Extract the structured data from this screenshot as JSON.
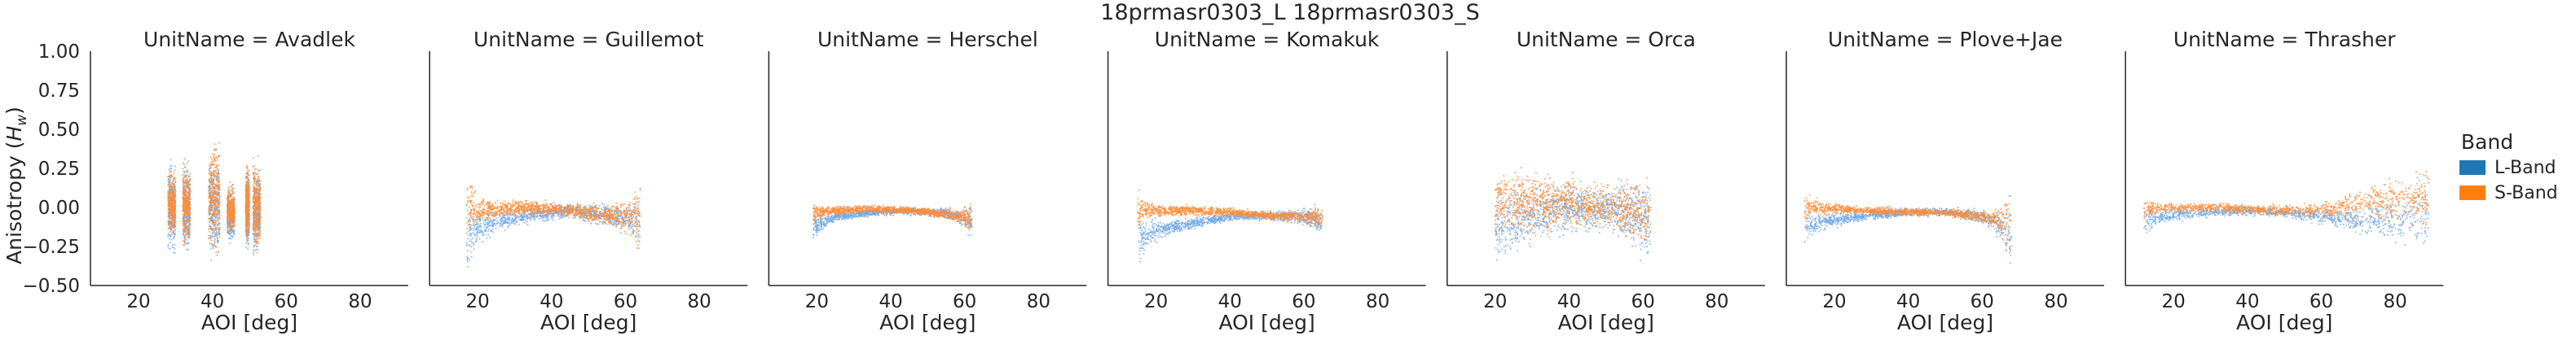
{
  "chart_data": {
    "type": "scatter",
    "suptitle": "18prmasr0303_L 18prmasr0303_S",
    "xlabel": "AOI [deg]",
    "ylabel": "Anisotropy ($H_w$)",
    "ylabel_text": "Anisotropy (",
    "ylabel_math": "H",
    "ylabel_sub": "w",
    "ylabel_close": ")",
    "xlim": [
      7,
      93
    ],
    "ylim": [
      -0.5,
      1.0
    ],
    "xticks": [
      20,
      40,
      60,
      80
    ],
    "yticks": [
      -0.5,
      -0.25,
      0.0,
      0.25,
      0.5,
      0.75,
      1.0
    ],
    "ytick_labels": [
      "−0.50",
      "−0.25",
      "0.00",
      "0.25",
      "0.50",
      "0.75",
      "1.00"
    ],
    "grid": false,
    "legend": {
      "title": "Band",
      "placement": "right",
      "entries": [
        {
          "label": "L-Band",
          "color": "#1f77b4"
        },
        {
          "label": "S-Band",
          "color": "#ff7f0e"
        }
      ]
    },
    "point_colors": {
      "L-Band": "#73a9e6",
      "S-Band": "#ff8c38"
    },
    "panels": [
      {
        "title": "UnitName = Avadlek",
        "strips": [
          {
            "x": [
              28,
              30
            ],
            "L": {
              "center": 0.0,
              "spread": 0.3
            },
            "S": {
              "center": 0.02,
              "spread": 0.22
            }
          },
          {
            "x": [
              32,
              34
            ],
            "L": {
              "center": 0.0,
              "spread": 0.3
            },
            "S": {
              "center": 0.02,
              "spread": 0.26
            }
          },
          {
            "x": [
              39,
              42
            ],
            "L": {
              "center": 0.0,
              "spread": 0.34
            },
            "S": {
              "center": 0.08,
              "spread": 0.38
            }
          },
          {
            "x": [
              44,
              46
            ],
            "L": {
              "center": -0.05,
              "spread": 0.18
            },
            "S": {
              "center": -0.02,
              "spread": 0.16
            }
          },
          {
            "x": [
              49,
              50
            ],
            "L": {
              "center": 0.0,
              "spread": 0.26
            },
            "S": {
              "center": 0.02,
              "spread": 0.26
            }
          },
          {
            "x": [
              51,
              53
            ],
            "L": {
              "center": -0.02,
              "spread": 0.3
            },
            "S": {
              "center": 0.0,
              "spread": 0.3
            }
          }
        ]
      },
      {
        "title": "UnitName = Guillemot",
        "range": [
          17,
          64
        ],
        "L": {
          "x": [
            17,
            25,
            35,
            45,
            55,
            60,
            64
          ],
          "y": [
            -0.17,
            -0.09,
            -0.04,
            -0.02,
            -0.05,
            -0.08,
            -0.1
          ]
        },
        "S": {
          "x": [
            17,
            25,
            35,
            45,
            55,
            60,
            64
          ],
          "y": [
            -0.03,
            -0.01,
            0.0,
            -0.02,
            -0.05,
            -0.05,
            -0.06
          ]
        },
        "spread": {
          "x": [
            17,
            20,
            25,
            45,
            58,
            62,
            64
          ],
          "L": [
            0.3,
            0.12,
            0.08,
            0.06,
            0.1,
            0.16,
            0.3
          ],
          "S": [
            0.32,
            0.12,
            0.07,
            0.05,
            0.1,
            0.18,
            0.35
          ]
        }
      },
      {
        "title": "UnitName = Herschel",
        "range": [
          19,
          62
        ],
        "L": {
          "x": [
            19,
            25,
            35,
            45,
            55,
            62
          ],
          "y": [
            -0.13,
            -0.06,
            -0.03,
            -0.02,
            -0.04,
            -0.09
          ]
        },
        "S": {
          "x": [
            19,
            25,
            35,
            45,
            55,
            62
          ],
          "y": [
            -0.03,
            -0.02,
            -0.01,
            -0.02,
            -0.04,
            -0.07
          ]
        },
        "spread": {
          "x": [
            19,
            22,
            30,
            50,
            58,
            62
          ],
          "L": [
            0.12,
            0.05,
            0.03,
            0.03,
            0.05,
            0.14
          ],
          "S": [
            0.1,
            0.04,
            0.03,
            0.03,
            0.05,
            0.12
          ]
        }
      },
      {
        "title": "UnitName = Komakuk",
        "range": [
          15,
          65
        ],
        "L": {
          "x": [
            15,
            20,
            30,
            40,
            50,
            60,
            65
          ],
          "y": [
            -0.2,
            -0.15,
            -0.1,
            -0.06,
            -0.05,
            -0.06,
            -0.09
          ]
        },
        "S": {
          "x": [
            15,
            20,
            30,
            40,
            50,
            60,
            65
          ],
          "y": [
            -0.02,
            -0.02,
            -0.02,
            -0.03,
            -0.05,
            -0.06,
            -0.07
          ]
        },
        "spread": {
          "x": [
            15,
            18,
            25,
            45,
            60,
            65
          ],
          "L": [
            0.22,
            0.1,
            0.05,
            0.03,
            0.06,
            0.12
          ],
          "S": [
            0.18,
            0.06,
            0.04,
            0.03,
            0.05,
            0.1
          ]
        }
      },
      {
        "title": "UnitName = Orca",
        "range": [
          20,
          62
        ],
        "L": {
          "x": [
            20,
            30,
            40,
            50,
            60,
            62
          ],
          "y": [
            -0.12,
            -0.05,
            0.0,
            0.0,
            -0.05,
            -0.1
          ]
        },
        "S": {
          "x": [
            20,
            30,
            40,
            50,
            60,
            62
          ],
          "y": [
            0.02,
            0.03,
            0.03,
            0.0,
            -0.03,
            -0.05
          ]
        },
        "spread": {
          "x": [
            20,
            25,
            35,
            50,
            58,
            62
          ],
          "L": [
            0.3,
            0.26,
            0.22,
            0.16,
            0.26,
            0.32
          ],
          "S": [
            0.28,
            0.26,
            0.24,
            0.14,
            0.26,
            0.3
          ]
        }
      },
      {
        "title": "UnitName = Plove+Jae",
        "range": [
          12,
          68
        ],
        "L": {
          "x": [
            12,
            20,
            30,
            40,
            50,
            60,
            66,
            68
          ],
          "y": [
            -0.12,
            -0.08,
            -0.05,
            -0.03,
            -0.03,
            -0.06,
            -0.12,
            -0.2
          ]
        },
        "S": {
          "x": [
            12,
            20,
            30,
            40,
            50,
            60,
            66,
            68
          ],
          "y": [
            0.0,
            -0.01,
            -0.02,
            -0.03,
            -0.03,
            -0.06,
            -0.1,
            -0.15
          ]
        },
        "spread": {
          "x": [
            12,
            16,
            25,
            50,
            62,
            66,
            68
          ],
          "L": [
            0.14,
            0.07,
            0.04,
            0.03,
            0.06,
            0.18,
            0.38
          ],
          "S": [
            0.12,
            0.05,
            0.03,
            0.03,
            0.06,
            0.22,
            0.42
          ]
        }
      },
      {
        "title": "UnitName = Thrasher",
        "range": [
          12,
          89
        ],
        "L": {
          "x": [
            12,
            20,
            30,
            40,
            50,
            60,
            70,
            80,
            89
          ],
          "y": [
            -0.08,
            -0.05,
            -0.03,
            -0.02,
            -0.03,
            -0.06,
            -0.08,
            -0.08,
            -0.05
          ]
        },
        "S": {
          "x": [
            12,
            20,
            30,
            40,
            50,
            60,
            70,
            80,
            89
          ],
          "y": [
            -0.02,
            0.0,
            0.0,
            -0.01,
            -0.02,
            -0.02,
            0.02,
            0.05,
            0.06
          ]
        },
        "spread": {
          "x": [
            12,
            15,
            25,
            50,
            65,
            75,
            85,
            89
          ],
          "L": [
            0.12,
            0.06,
            0.04,
            0.04,
            0.07,
            0.15,
            0.22,
            0.28
          ],
          "S": [
            0.1,
            0.05,
            0.04,
            0.04,
            0.08,
            0.16,
            0.22,
            0.25
          ]
        }
      }
    ]
  }
}
